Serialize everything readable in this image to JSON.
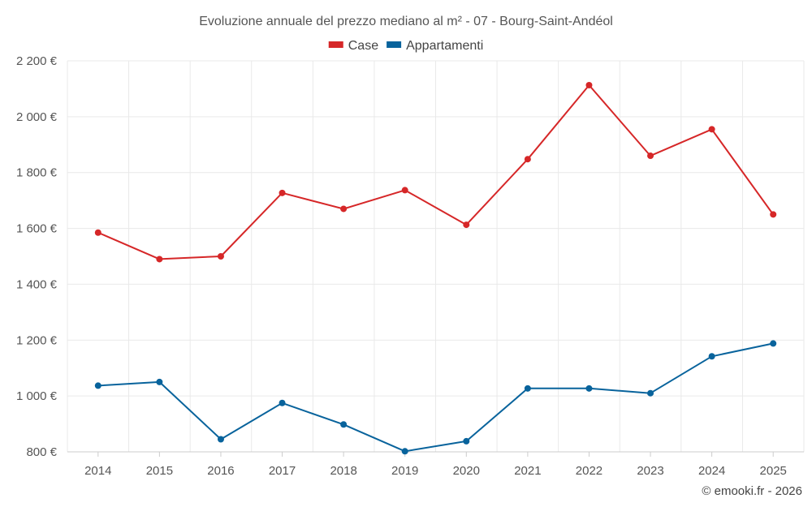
{
  "chart_data": {
    "type": "line",
    "title": "Evoluzione annuale del prezzo mediano al m² - 07 - Bourg-Saint-Andéol",
    "xlabel": "",
    "ylabel": "",
    "categories": [
      "2014",
      "2015",
      "2016",
      "2017",
      "2018",
      "2019",
      "2020",
      "2021",
      "2022",
      "2023",
      "2024",
      "2025"
    ],
    "series": [
      {
        "name": "Case",
        "color": "#d62728",
        "values": [
          1585,
          1490,
          1500,
          1727,
          1670,
          1737,
          1613,
          1848,
          2113,
          1860,
          1955,
          1650
        ]
      },
      {
        "name": "Appartamenti",
        "color": "#08639c",
        "values": [
          1037,
          1050,
          845,
          975,
          898,
          802,
          838,
          1027,
          1027,
          1010,
          1142,
          1188
        ]
      }
    ],
    "ylim": [
      800,
      2200
    ],
    "yticks": [
      800,
      1000,
      1200,
      1400,
      1600,
      1800,
      2000,
      2200
    ],
    "ytick_labels": [
      "800 €",
      "1 000 €",
      "1 200 €",
      "1 400 €",
      "1 600 €",
      "1 800 €",
      "2 000 €",
      "2 200 €"
    ],
    "grid": true,
    "legend": "top-center"
  },
  "credit": "© emooki.fr - 2026"
}
